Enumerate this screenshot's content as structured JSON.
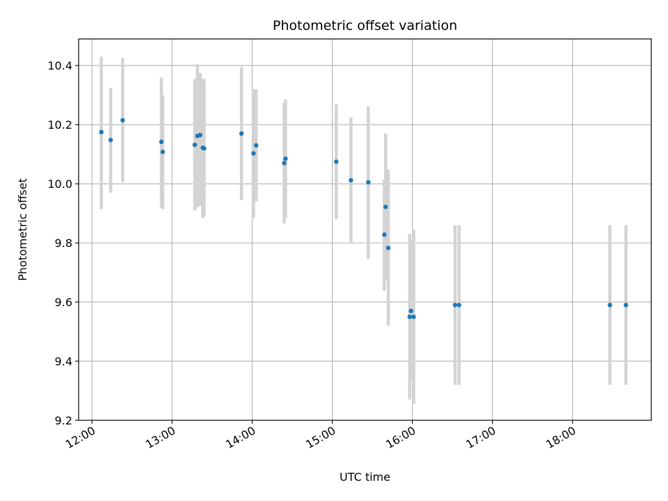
{
  "chart_data": {
    "type": "scatter",
    "title": "Photometric offset variation",
    "xlabel": "UTC time",
    "ylabel": "Photometric offset",
    "grid": true,
    "xlim": [
      "11:50",
      "18:59"
    ],
    "ylim": [
      9.2,
      10.49
    ],
    "x_ticks": [
      "12:00",
      "13:00",
      "14:00",
      "15:00",
      "16:00",
      "17:00",
      "18:00"
    ],
    "y_ticks": [
      9.2,
      9.4,
      9.6,
      9.8,
      10.0,
      10.2,
      10.4
    ],
    "colors": {
      "points": "#1f77b4",
      "error_bars": "#d3d3d3",
      "grid": "#b0b0b0"
    },
    "points": [
      {
        "x": "12:07",
        "y": 10.175,
        "ylow": 9.915,
        "yhigh": 10.43
      },
      {
        "x": "12:14",
        "y": 10.148,
        "ylow": 9.97,
        "yhigh": 10.325
      },
      {
        "x": "12:23",
        "y": 10.215,
        "ylow": 10.005,
        "yhigh": 10.425
      },
      {
        "x": "12:52",
        "y": 10.142,
        "ylow": 9.92,
        "yhigh": 10.36
      },
      {
        "x": "12:53",
        "y": 10.108,
        "ylow": 9.915,
        "yhigh": 10.3
      },
      {
        "x": "13:17",
        "y": 10.132,
        "ylow": 9.91,
        "yhigh": 10.355
      },
      {
        "x": "13:19",
        "y": 10.162,
        "ylow": 9.92,
        "yhigh": 10.405
      },
      {
        "x": "13:21",
        "y": 10.165,
        "ylow": 9.925,
        "yhigh": 10.375
      },
      {
        "x": "13:23",
        "y": 10.122,
        "ylow": 9.885,
        "yhigh": 10.355
      },
      {
        "x": "13:24",
        "y": 10.12,
        "ylow": 9.89,
        "yhigh": 10.355
      },
      {
        "x": "13:52",
        "y": 10.17,
        "ylow": 9.945,
        "yhigh": 10.395
      },
      {
        "x": "14:01",
        "y": 10.103,
        "ylow": 9.885,
        "yhigh": 10.32
      },
      {
        "x": "14:03",
        "y": 10.13,
        "ylow": 9.94,
        "yhigh": 10.32
      },
      {
        "x": "14:24",
        "y": 10.07,
        "ylow": 9.865,
        "yhigh": 10.275
      },
      {
        "x": "14:25",
        "y": 10.085,
        "ylow": 9.885,
        "yhigh": 10.285
      },
      {
        "x": "15:03",
        "y": 10.075,
        "ylow": 9.88,
        "yhigh": 10.268
      },
      {
        "x": "15:14",
        "y": 10.012,
        "ylow": 9.8,
        "yhigh": 10.225
      },
      {
        "x": "15:27",
        "y": 10.005,
        "ylow": 9.745,
        "yhigh": 10.262
      },
      {
        "x": "15:39",
        "y": 9.828,
        "ylow": 9.638,
        "yhigh": 10.015
      },
      {
        "x": "15:40",
        "y": 9.922,
        "ylow": 9.675,
        "yhigh": 10.17
      },
      {
        "x": "15:42",
        "y": 9.783,
        "ylow": 9.52,
        "yhigh": 10.048
      },
      {
        "x": "15:58",
        "y": 9.55,
        "ylow": 9.27,
        "yhigh": 9.83
      },
      {
        "x": "15:59",
        "y": 9.57,
        "ylow": 9.335,
        "yhigh": 9.81
      },
      {
        "x": "16:01",
        "y": 9.55,
        "ylow": 9.255,
        "yhigh": 9.845
      },
      {
        "x": "16:32",
        "y": 9.59,
        "ylow": 9.32,
        "yhigh": 9.86
      },
      {
        "x": "16:35",
        "y": 9.59,
        "ylow": 9.32,
        "yhigh": 9.86
      },
      {
        "x": "18:28",
        "y": 9.59,
        "ylow": 9.32,
        "yhigh": 9.86
      },
      {
        "x": "18:40",
        "y": 9.59,
        "ylow": 9.32,
        "yhigh": 9.86
      }
    ]
  }
}
